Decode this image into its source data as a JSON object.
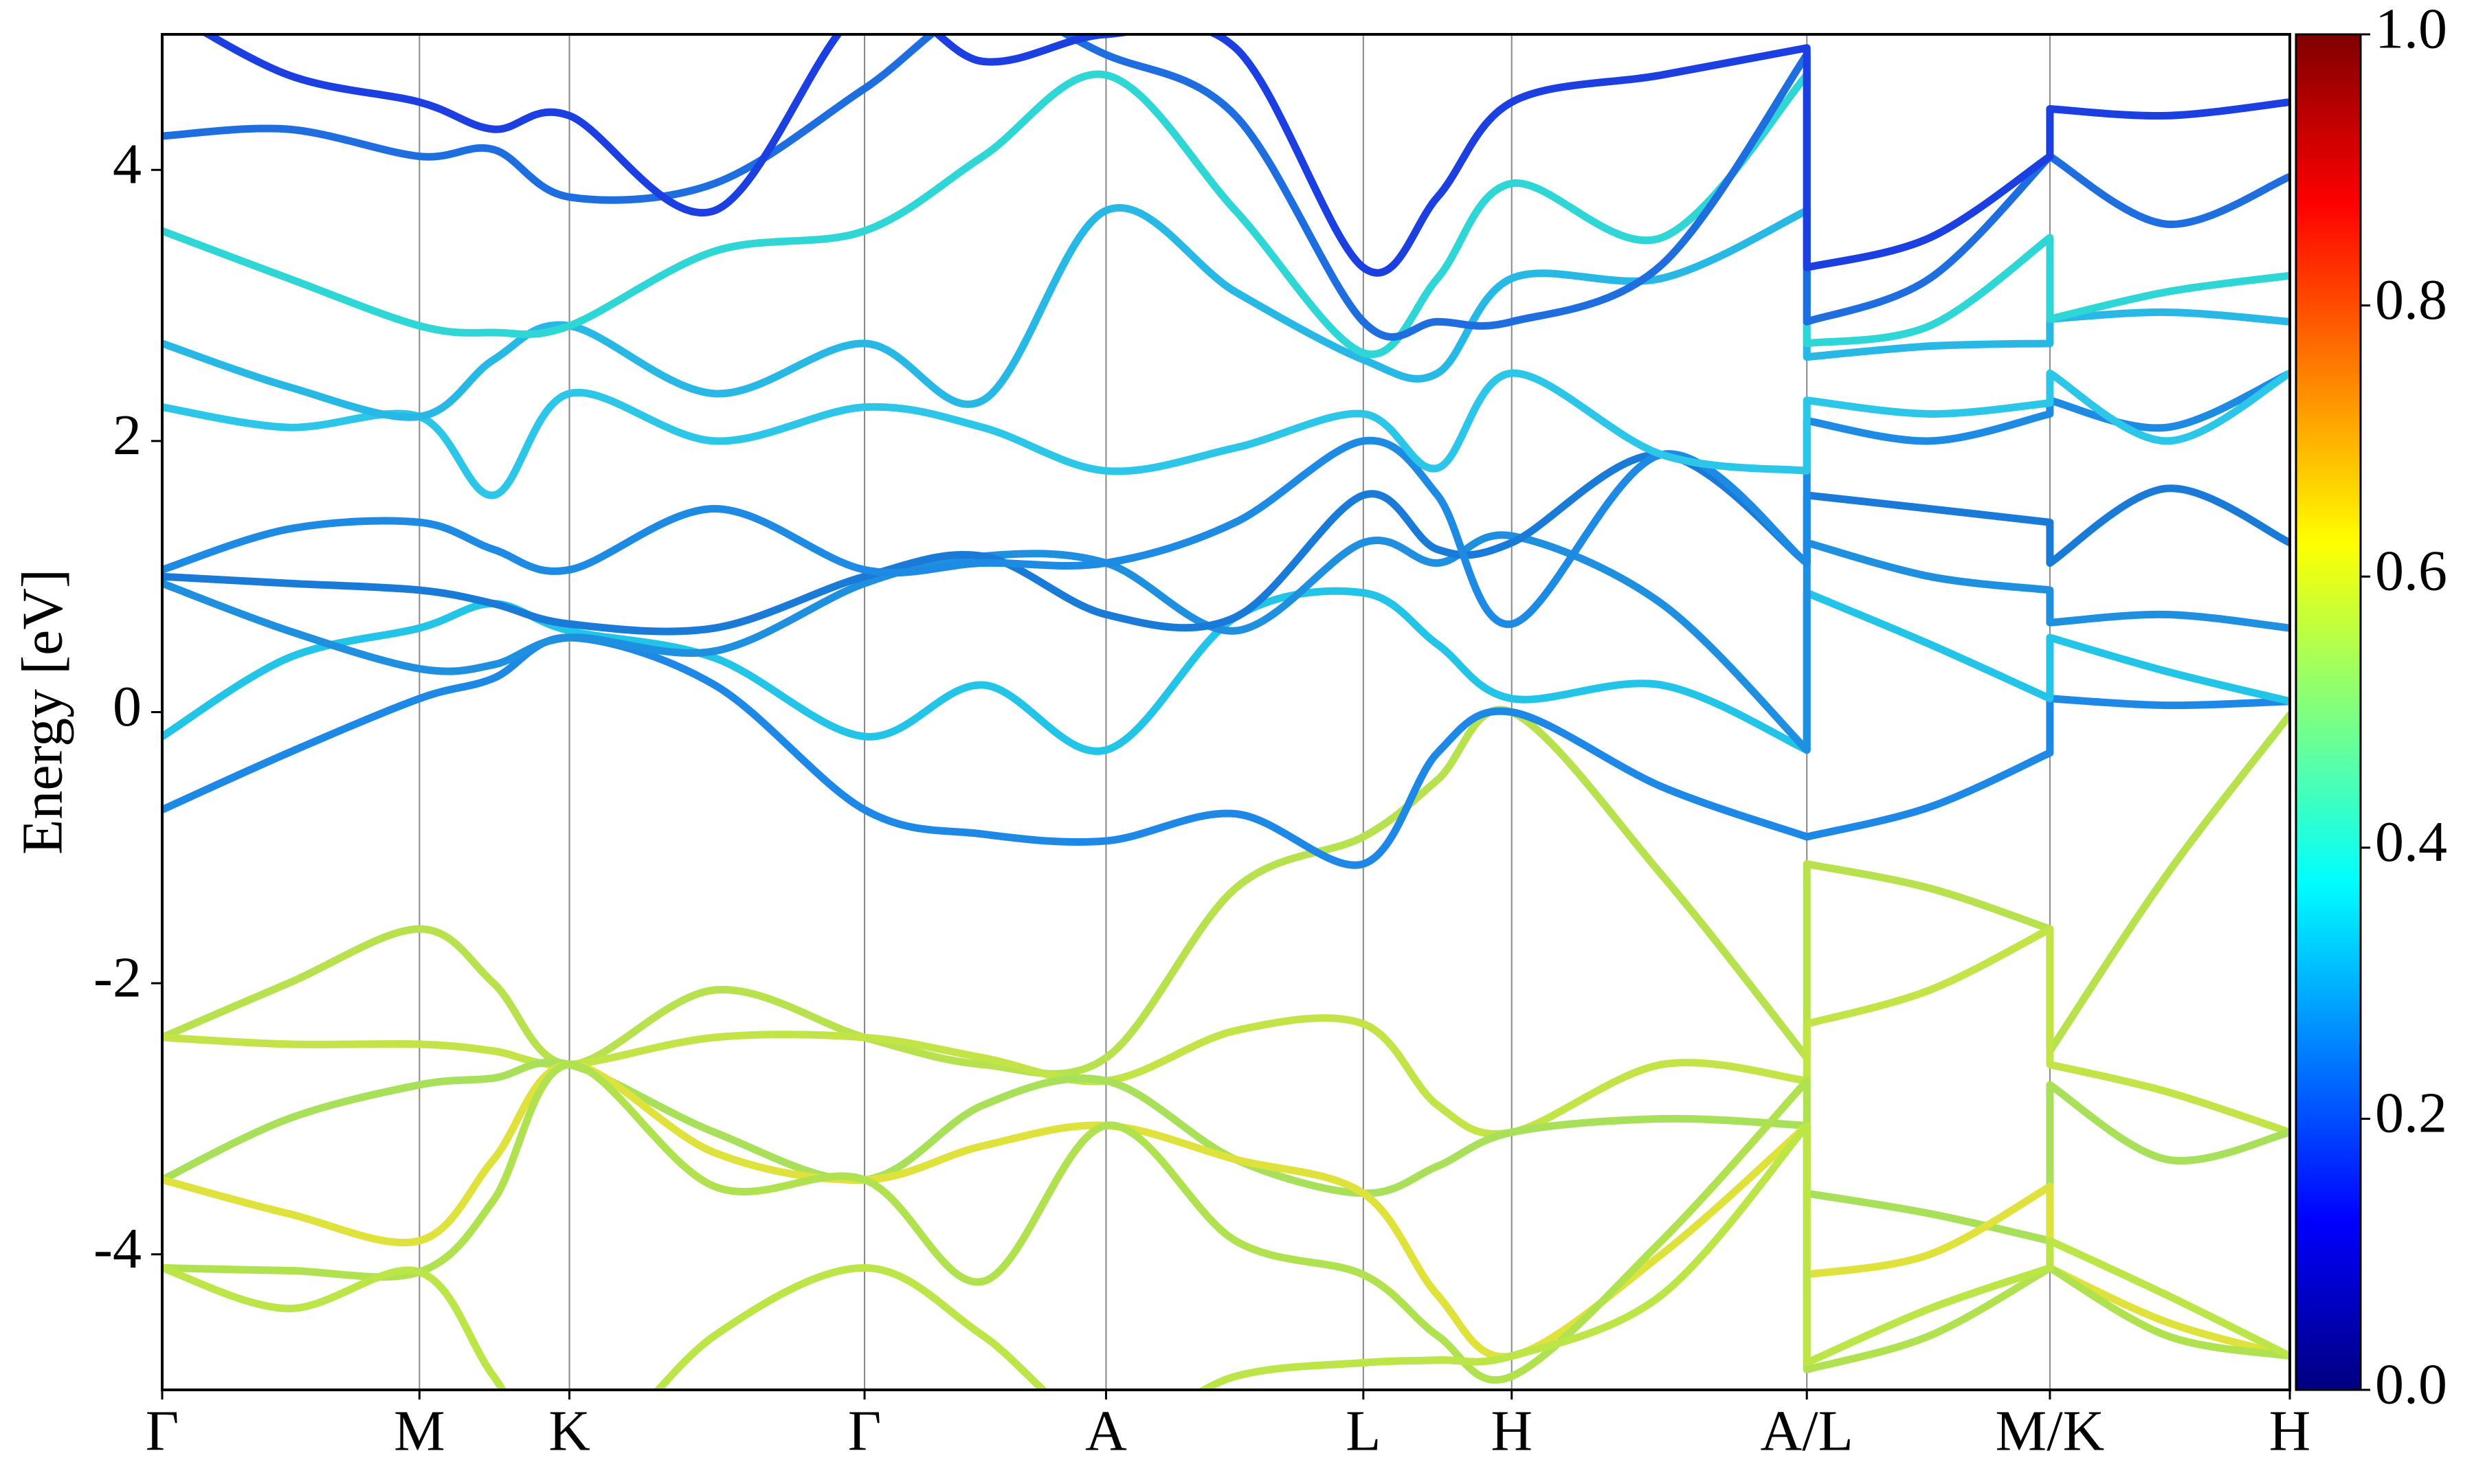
{
  "chart_data": {
    "type": "line",
    "ylabel": "Energy [eV]",
    "x": [
      0,
      0.8,
      1.63,
      2.1,
      2.58,
      3.5,
      4.45,
      5.2,
      5.98,
      6.8,
      7.61,
      8.08,
      8.55,
      9.5,
      10.42,
      10.42,
      11.2,
      11.96,
      11.96,
      12.7,
      13.48
    ],
    "xlim": [
      0,
      13.48
    ],
    "ylim": [
      -5,
      5
    ],
    "xticks": [
      {
        "value": 0,
        "label": "Γ"
      },
      {
        "value": 1.63,
        "label": "M"
      },
      {
        "value": 2.58,
        "label": "K"
      },
      {
        "value": 4.45,
        "label": "Γ"
      },
      {
        "value": 5.98,
        "label": "A"
      },
      {
        "value": 7.61,
        "label": "L"
      },
      {
        "value": 8.55,
        "label": "H"
      },
      {
        "value": 10.42,
        "label": "A/L"
      },
      {
        "value": 11.96,
        "label": "M/K"
      },
      {
        "value": 13.48,
        "label": "H"
      }
    ],
    "yticks": [
      -4,
      -2,
      0,
      2,
      4
    ],
    "xgrid": true,
    "colormap": "jet",
    "clim": [
      0,
      1
    ],
    "cticks": [
      {
        "value": 0,
        "label": "0.0"
      },
      {
        "value": 0.2,
        "label": "0.2"
      },
      {
        "value": 0.4,
        "label": "0.4"
      },
      {
        "value": 0.6,
        "label": "0.6"
      },
      {
        "value": 0.8,
        "label": "0.8"
      },
      {
        "value": 1,
        "label": "1.0"
      }
    ],
    "series": [
      {
        "color": "#b7e24d",
        "values": [
          -2.4,
          -2.0,
          -1.6,
          -2.0,
          -2.6,
          -2.05,
          -2.4,
          -2.6,
          -2.55,
          -1.3,
          -0.92,
          -0.5,
          0.0,
          -1.2,
          -2.55,
          -1.12,
          -1.3,
          -1.6,
          -2.5,
          -1.2,
          -0.02
        ]
      },
      {
        "color": "#c2e446",
        "values": [
          -2.4,
          -2.45,
          -2.45,
          -2.5,
          -2.6,
          -2.4,
          -2.4,
          -2.55,
          -2.72,
          -2.35,
          -2.3,
          -2.9,
          -3.1,
          -2.6,
          -2.72,
          -2.3,
          -2.05,
          -1.6,
          -2.6,
          -2.8,
          -3.1
        ]
      },
      {
        "color": "#a8e05a",
        "values": [
          -3.45,
          -3.0,
          -2.75,
          -2.7,
          -2.6,
          -3.1,
          -3.45,
          -2.9,
          -2.72,
          -3.3,
          -3.55,
          -3.35,
          -3.1,
          -3.0,
          -3.05,
          -3.55,
          -3.7,
          -3.9,
          -2.75,
          -3.3,
          -3.1
        ]
      },
      {
        "color": "#e0e23c",
        "values": [
          -3.45,
          -3.7,
          -3.9,
          -3.3,
          -2.6,
          -3.25,
          -3.45,
          -3.2,
          -3.05,
          -3.3,
          -3.55,
          -4.3,
          -4.75,
          -4.0,
          -3.05,
          -4.15,
          -4.0,
          -3.5,
          -4.1,
          -4.5,
          -4.75
        ]
      },
      {
        "color": "#b0e250",
        "values": [
          -4.1,
          -4.12,
          -4.13,
          -3.6,
          -2.6,
          -3.5,
          -3.45,
          -4.2,
          -3.05,
          -3.9,
          -4.15,
          -4.6,
          -4.9,
          -3.9,
          -2.72,
          -4.85,
          -4.6,
          -4.1,
          -4.1,
          -4.6,
          -4.75
        ]
      },
      {
        "color": "#bce648",
        "values": [
          -4.1,
          -4.4,
          -4.13,
          -4.9,
          -5.6,
          -4.6,
          -4.1,
          -4.6,
          -5.3,
          -4.9,
          -4.8,
          -4.78,
          -4.75,
          -4.3,
          -3.05,
          -4.8,
          -4.4,
          -4.1,
          -3.9,
          -4.3,
          -4.75
        ]
      },
      {
        "color": "#1e88e6",
        "values": [
          -0.72,
          -0.3,
          0.1,
          0.25,
          0.55,
          0.2,
          -0.72,
          -0.9,
          -0.95,
          -0.75,
          -1.12,
          -0.3,
          0.0,
          -0.55,
          -0.92,
          -0.92,
          -0.7,
          -0.3,
          0.1,
          0.05,
          0.08
        ]
      },
      {
        "color": "#22c4e8",
        "values": [
          -0.18,
          0.4,
          0.62,
          0.8,
          0.6,
          0.4,
          -0.18,
          0.2,
          -0.28,
          0.7,
          0.88,
          0.5,
          0.1,
          0.2,
          -0.28,
          0.88,
          0.5,
          0.1,
          0.55,
          0.3,
          0.08
        ]
      },
      {
        "color": "#1f8fe0",
        "values": [
          0.95,
          0.6,
          0.32,
          0.35,
          0.55,
          0.45,
          0.95,
          1.15,
          1.1,
          0.6,
          1.25,
          1.1,
          1.3,
          0.8,
          -0.28,
          1.25,
          1.0,
          0.9,
          0.66,
          0.72,
          0.62
        ]
      },
      {
        "color": "#1a7ad8",
        "values": [
          1.0,
          0.95,
          0.9,
          0.8,
          0.65,
          0.62,
          1.0,
          1.15,
          0.72,
          0.7,
          1.6,
          1.2,
          1.25,
          1.9,
          1.1,
          1.6,
          1.5,
          1.4,
          1.1,
          1.65,
          1.25
        ]
      },
      {
        "color": "#1d8ae3",
        "values": [
          1.05,
          1.35,
          1.4,
          1.2,
          1.05,
          1.5,
          1.05,
          1.1,
          1.1,
          1.4,
          2.0,
          1.6,
          0.65,
          1.9,
          1.1,
          2.15,
          2.0,
          2.2,
          2.3,
          2.1,
          2.5
        ]
      },
      {
        "color": "#2bc6e8",
        "values": [
          2.25,
          2.1,
          2.18,
          1.6,
          2.35,
          2.0,
          2.25,
          2.1,
          1.78,
          1.95,
          2.2,
          1.8,
          2.5,
          1.9,
          1.78,
          2.3,
          2.2,
          2.28,
          2.5,
          2.0,
          2.5
        ]
      },
      {
        "color": "#28b8e6",
        "values": [
          2.72,
          2.4,
          2.18,
          2.6,
          2.85,
          2.35,
          2.72,
          2.3,
          3.7,
          3.1,
          2.6,
          2.5,
          3.2,
          3.2,
          3.7,
          2.62,
          2.7,
          2.72,
          2.9,
          2.95,
          2.88
        ]
      },
      {
        "color": "#2ed6d6",
        "values": [
          3.55,
          3.2,
          2.85,
          2.8,
          2.85,
          3.4,
          3.55,
          4.1,
          4.7,
          3.7,
          2.65,
          3.2,
          3.9,
          3.5,
          4.7,
          2.72,
          2.85,
          3.5,
          2.9,
          3.1,
          3.22
        ]
      },
      {
        "color": "#1e6ee0",
        "values": [
          4.25,
          4.3,
          4.1,
          4.15,
          3.8,
          3.9,
          4.6,
          5.2,
          4.85,
          4.4,
          2.88,
          2.88,
          2.88,
          3.3,
          4.85,
          2.88,
          3.2,
          4.1,
          4.1,
          3.6,
          3.95
        ]
      },
      {
        "color": "#1b3fe0",
        "values": [
          5.2,
          4.7,
          4.5,
          4.3,
          4.4,
          3.7,
          5.2,
          4.8,
          5.0,
          4.9,
          3.28,
          3.8,
          4.5,
          4.7,
          4.9,
          3.28,
          3.5,
          4.1,
          4.45,
          4.4,
          4.5
        ]
      }
    ]
  }
}
